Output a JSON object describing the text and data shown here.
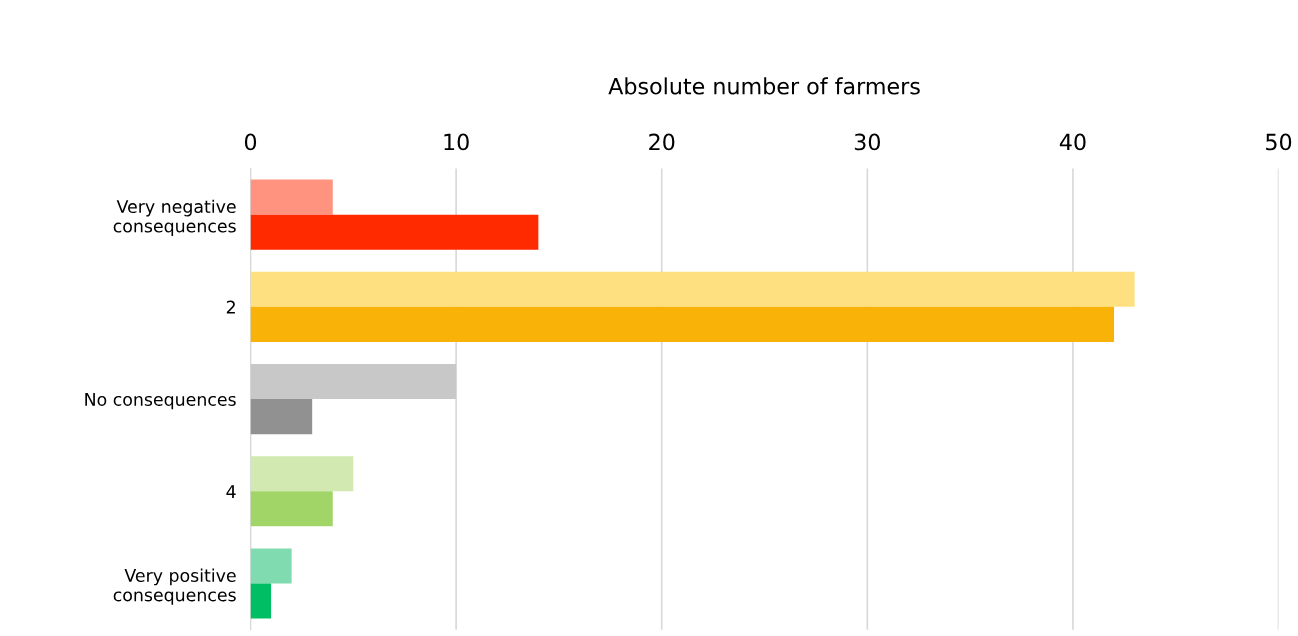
{
  "chart_data": {
    "type": "bar",
    "orientation": "horizontal",
    "xlabel": "Absolute number of farmers",
    "categories": [
      "Very negative\nconsequences",
      "2",
      "No consequences",
      "4",
      "Very positive\nconsequences"
    ],
    "series": [
      {
        "colors": [
          "#ff9380",
          "#ffe080",
          "#c8c8c8",
          "#d2e9b1",
          "#80dcb0"
        ],
        "values": [
          4,
          43,
          10,
          5,
          2
        ]
      },
      {
        "colors": [
          "#ff2a00",
          "#f9b208",
          "#919191",
          "#a2d567",
          "#00be63"
        ],
        "values": [
          14,
          42,
          3,
          4,
          1
        ]
      }
    ],
    "xlim": [
      0,
      50
    ],
    "xticks": [
      0,
      10,
      20,
      30,
      40,
      50
    ],
    "grid": "x"
  }
}
